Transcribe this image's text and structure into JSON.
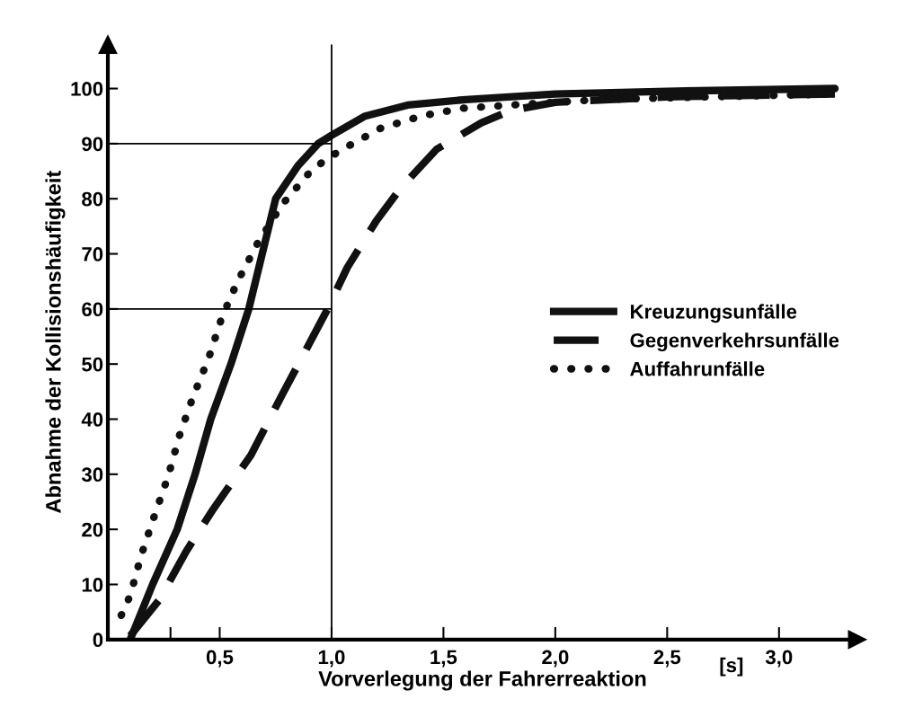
{
  "chart_data": {
    "type": "line",
    "xlabel": "Vorverlegung der Fahrerreaktion",
    "ylabel": "Abnahme der Kollisionshäufigkeit",
    "xlim": [
      0,
      3.35
    ],
    "ylim": [
      0,
      108
    ],
    "xticks": [
      {
        "value": 0.28,
        "label": null
      },
      {
        "value": 0.5,
        "label": "0,5"
      },
      {
        "value": 1.0,
        "label": "1,0"
      },
      {
        "value": 1.5,
        "label": "1,5"
      },
      {
        "value": 2.0,
        "label": "2,0"
      },
      {
        "value": 2.5,
        "label": "2,5"
      },
      {
        "value": 3.0,
        "label": "3,0"
      }
    ],
    "yticks": [
      0,
      10,
      20,
      30,
      40,
      50,
      60,
      70,
      80,
      90,
      100
    ],
    "grid": false,
    "legend": "right",
    "marker": "none",
    "annotations": [
      "[s]"
    ],
    "ref_lines": [
      {
        "axis": "x",
        "value": 1.0,
        "label": null,
        "color": "#000000",
        "line_style": "solid"
      }
    ],
    "series": [
      {
        "name": "Kreuzungsunfälle",
        "color": "#111111",
        "line_style": "solid",
        "x": [
          0.1,
          0.2,
          0.31,
          0.39,
          0.46,
          0.55,
          0.63,
          0.75,
          0.85,
          0.94,
          1.0,
          1.15,
          1.34,
          1.6,
          2.0,
          2.5,
          3.25
        ],
        "values": [
          0,
          10,
          20,
          30,
          40,
          50,
          60,
          80,
          86,
          90,
          91.5,
          95,
          97,
          98,
          99,
          99.5,
          100
        ]
      },
      {
        "name": "Gegenverkehrsunfälle",
        "color": "#111111",
        "line_style": "dashed",
        "x": [
          0.1,
          0.23,
          0.35,
          0.47,
          0.64,
          0.78,
          0.98,
          1.07,
          1.2,
          1.31,
          1.47,
          1.67,
          1.8,
          2.0,
          2.5,
          3.25
        ],
        "values": [
          0.7,
          7.2,
          16,
          23.6,
          33.5,
          44.5,
          59.8,
          67.5,
          76,
          82,
          89,
          93.8,
          96,
          97.5,
          98.5,
          99
        ]
      },
      {
        "name": "Auffahrunfälle",
        "color": "#111111",
        "line_style": "dotted",
        "x": [
          0.06,
          0.1,
          0.15,
          0.21,
          0.27,
          0.32,
          0.38,
          0.45,
          0.51,
          0.58,
          0.67,
          0.78,
          0.9,
          0.97,
          1.05,
          1.22,
          1.4,
          1.58,
          1.8,
          2.2,
          2.7,
          3.25
        ],
        "values": [
          4.4,
          8,
          15.4,
          22.7,
          29.7,
          37,
          44,
          51,
          58.5,
          65,
          72,
          79,
          84.7,
          87,
          89,
          92.8,
          95,
          96.4,
          97,
          98,
          98.5,
          99
        ]
      },
      {
        "color": "#000000",
        "line_style": "solid",
        "x": [
          0,
          1.0
        ],
        "values": [
          90,
          90
        ]
      },
      {
        "color": "#000000",
        "line_style": "solid",
        "x": [
          0,
          1.0
        ],
        "values": [
          60,
          60
        ]
      }
    ]
  }
}
